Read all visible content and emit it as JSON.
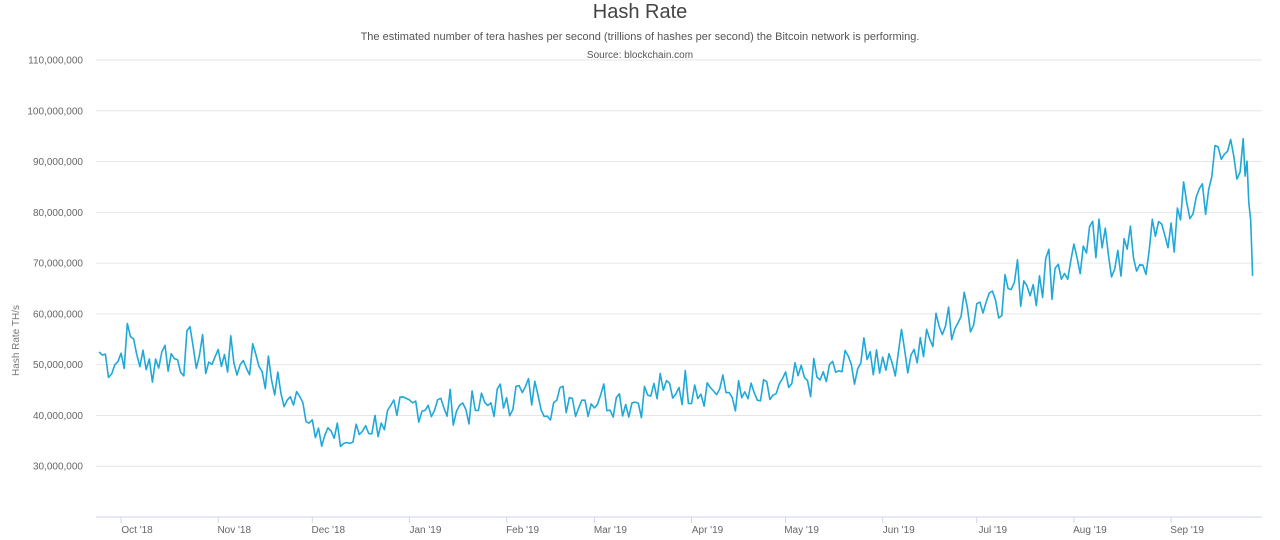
{
  "chart_data": {
    "type": "line",
    "title": "Hash Rate",
    "subtitle": "The estimated number of tera hashes per second (trillions of hashes per second) the Bitcoin network is performing.",
    "source": "Source: blockchain.com",
    "xlabel": "",
    "ylabel": "Hash Rate TH/s",
    "x_ticks": [
      "Oct '18",
      "Nov '18",
      "Dec '18",
      "Jan '19",
      "Feb '19",
      "Mar '19",
      "Apr '19",
      "May '19",
      "Jun '19",
      "Jul '19",
      "Aug '19",
      "Sep '19"
    ],
    "y_ticks": [
      30000000,
      40000000,
      50000000,
      60000000,
      70000000,
      80000000,
      90000000,
      100000000,
      110000000
    ],
    "y_tick_labels": [
      "30,000,000",
      "40,000,000",
      "50,000,000",
      "60,000,000",
      "70,000,000",
      "80,000,000",
      "90,000,000",
      "100,000,000",
      "110,000,000"
    ],
    "ylim": [
      20000000,
      110000000
    ],
    "xlim": [
      "2018-09-23",
      "2019-09-30"
    ],
    "grid": true,
    "legend": "none",
    "line_color": "#1fa8d8",
    "series": [
      {
        "x": [
          "2018-09-24",
          "2018-09-29",
          "2018-10-04",
          "2018-10-09",
          "2018-10-14",
          "2018-10-19",
          "2018-10-24",
          "2018-10-29",
          "2018-11-03",
          "2018-11-08",
          "2018-11-13",
          "2018-11-18",
          "2018-11-23",
          "2018-11-28",
          "2018-12-03",
          "2018-12-08",
          "2018-12-13",
          "2018-12-18",
          "2018-12-23",
          "2018-12-28",
          "2019-01-02",
          "2019-01-07",
          "2019-01-12",
          "2019-01-17",
          "2019-01-22",
          "2019-01-27",
          "2019-02-01",
          "2019-02-06",
          "2019-02-11",
          "2019-02-16",
          "2019-02-21",
          "2019-02-26",
          "2019-03-03",
          "2019-03-08",
          "2019-03-13",
          "2019-03-18",
          "2019-03-23",
          "2019-03-28",
          "2019-04-02",
          "2019-04-07",
          "2019-04-12",
          "2019-04-17",
          "2019-04-22",
          "2019-04-27",
          "2019-05-02",
          "2019-05-07",
          "2019-05-12",
          "2019-05-17",
          "2019-05-22",
          "2019-05-27",
          "2019-06-01",
          "2019-06-06",
          "2019-06-11",
          "2019-06-16",
          "2019-06-21",
          "2019-06-26",
          "2019-07-01",
          "2019-07-06",
          "2019-07-11",
          "2019-07-16",
          "2019-07-21",
          "2019-07-26",
          "2019-07-31",
          "2019-08-05",
          "2019-08-10",
          "2019-08-15",
          "2019-08-20",
          "2019-08-25",
          "2019-08-30",
          "2019-09-04",
          "2019-09-09",
          "2019-09-14",
          "2019-09-19",
          "2019-09-24",
          "2019-09-27"
        ],
        "values": [
          52500000,
          50000000,
          55500000,
          49000000,
          52500000,
          51000000,
          53500000,
          50500000,
          52000000,
          50000000,
          52000000,
          47000000,
          43000000,
          42500000,
          37500000,
          35500000,
          34500000,
          38000000,
          38500000,
          40000000,
          42500000,
          42000000,
          41500000,
          42000000,
          41000000,
          42500000,
          43500000,
          44500000,
          44000000,
          42500000,
          43500000,
          43000000,
          44000000,
          43500000,
          42500000,
          44000000,
          45000000,
          45500000,
          46000000,
          45500000,
          44500000,
          43500000,
          43000000,
          44000000,
          45500000,
          47500000,
          47000000,
          48500000,
          50000000,
          51000000,
          51500000,
          52500000,
          53000000,
          55000000,
          57500000,
          59500000,
          62000000,
          64500000,
          65000000,
          66500000,
          67500000,
          69000000,
          70500000,
          72000000,
          73000000,
          72500000,
          71000000,
          72500000,
          75500000,
          78500000,
          83000000,
          87000000,
          92000000,
          94500000,
          67500000
        ]
      }
    ]
  }
}
